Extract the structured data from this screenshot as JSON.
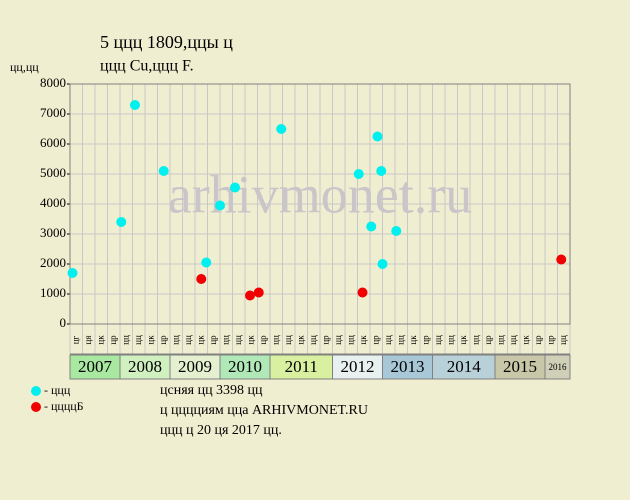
{
  "chart_data": {
    "type": "scatter",
    "title": "5 ццц 1809,ццы ц",
    "subtitle": "ццц Cu,ццц F.",
    "y_label": "цц,цц",
    "watermark": "arhivmonet.ru",
    "categories": [
      "цг",
      "ця",
      "цк",
      "цр",
      "цц",
      "цц",
      "цк",
      "цр",
      "цц",
      "цц",
      "цк",
      "цр",
      "цц",
      "цц",
      "цк",
      "цр",
      "цц",
      "цц",
      "цк",
      "цц",
      "цр",
      "цц",
      "цц",
      "цк",
      "цр",
      "цц",
      "цц",
      "цк",
      "цр",
      "цц",
      "цц",
      "цк",
      "цц",
      "цр",
      "цц",
      "цц",
      "цк",
      "цр",
      "цр",
      "цц"
    ],
    "years": [
      {
        "label": "2007",
        "columns": 4,
        "color": "#a8e8a0"
      },
      {
        "label": "2008",
        "columns": 4,
        "color": "#d0f0c0"
      },
      {
        "label": "2009",
        "columns": 4,
        "color": "#e4f0d0"
      },
      {
        "label": "2010",
        "columns": 4,
        "color": "#b0e8b8"
      },
      {
        "label": "2011",
        "columns": 5,
        "color": "#d8f0a0"
      },
      {
        "label": "2012",
        "columns": 4,
        "color": "#e8f0f0"
      },
      {
        "label": "2013",
        "columns": 4,
        "color": "#a8c8d8"
      },
      {
        "label": "2014",
        "columns": 5,
        "color": "#b8d0d8"
      },
      {
        "label": "2015",
        "columns": 4,
        "color": "#c8c8a8"
      },
      {
        "label": "2016",
        "columns": 2,
        "color": "#d0d0b8"
      }
    ],
    "xlim": [
      0,
      40
    ],
    "ylim": [
      0,
      8000
    ],
    "yticks": [
      0,
      1000,
      2000,
      3000,
      4000,
      5000,
      6000,
      7000,
      8000
    ],
    "grid": true,
    "series": [
      {
        "name": "- ццц",
        "color": "#00f0f0",
        "x": [
          0.2,
          4.1,
          5.2,
          7.5,
          10.9,
          12.0,
          13.2,
          16.9,
          23.1,
          24.1,
          24.6,
          24.9,
          25.0,
          26.1
        ],
        "values": [
          1700,
          3400,
          7300,
          5100,
          2050,
          3950,
          4550,
          6500,
          5000,
          3250,
          6250,
          5100,
          2000,
          3100
        ]
      },
      {
        "name": "- ццццБ",
        "color": "#f00000",
        "x": [
          10.5,
          14.4,
          15.1,
          23.4,
          39.3
        ],
        "values": [
          1500,
          950,
          1050,
          1050,
          2150
        ]
      }
    ],
    "notes": [
      "цсняя цц 3398 цц",
      "ц цццциям цца ARHIVMONET.RU",
      "ццц ц 20 ця 2017 цц."
    ]
  }
}
